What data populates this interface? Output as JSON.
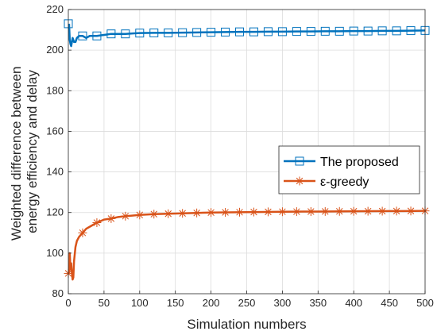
{
  "chart_data": {
    "type": "line",
    "xlabel": "Simulation numbers",
    "ylabel_lines": [
      "Weighted difference between",
      "energy efficiency and delay"
    ],
    "xlim": [
      0,
      500
    ],
    "ylim": [
      80,
      220
    ],
    "xticks": [
      0,
      50,
      100,
      150,
      200,
      250,
      300,
      350,
      400,
      450,
      500
    ],
    "yticks": [
      80,
      100,
      120,
      140,
      160,
      180,
      200,
      220
    ],
    "grid": true,
    "legend_position": "right",
    "series": [
      {
        "name": "The proposed",
        "color": "#0072BD",
        "marker": "square",
        "x": [
          1,
          2,
          3,
          4,
          5,
          6,
          7,
          8,
          9,
          10,
          12,
          15,
          20,
          25,
          30,
          35,
          40,
          50,
          60,
          70,
          80,
          90,
          100,
          120,
          140,
          160,
          180,
          200,
          220,
          240,
          260,
          280,
          300,
          320,
          340,
          360,
          380,
          400,
          420,
          440,
          460,
          480,
          500
        ],
        "y": [
          213,
          205,
          203,
          202,
          204,
          206,
          205,
          204,
          204,
          204,
          206,
          207,
          207,
          206,
          207,
          207,
          207,
          207.5,
          208,
          208,
          208,
          208.2,
          208.4,
          208.5,
          208.5,
          208.6,
          208.7,
          208.8,
          208.9,
          209,
          209,
          209.1,
          209.1,
          209.2,
          209.2,
          209.3,
          209.3,
          209.4,
          209.4,
          209.5,
          209.5,
          209.6,
          209.7
        ],
        "marker_x": [
          0,
          20,
          40,
          60,
          80,
          100,
          120,
          140,
          160,
          180,
          200,
          220,
          240,
          260,
          280,
          300,
          320,
          340,
          360,
          380,
          400,
          420,
          440,
          460,
          480,
          500
        ]
      },
      {
        "name": "ε-greedy",
        "color": "#D95319",
        "marker": "asterisk",
        "x": [
          1,
          2,
          3,
          4,
          5,
          6,
          7,
          8,
          10,
          12,
          15,
          20,
          25,
          30,
          40,
          50,
          60,
          70,
          80,
          100,
          120,
          140,
          160,
          180,
          200,
          250,
          300,
          350,
          400,
          450,
          500
        ],
        "y": [
          90,
          100,
          92,
          95,
          90,
          87,
          88,
          96,
          103,
          106,
          108,
          110,
          112,
          113,
          115,
          116.5,
          117,
          117.8,
          118.2,
          118.8,
          119.2,
          119.4,
          119.6,
          119.8,
          120,
          120.2,
          120.4,
          120.5,
          120.6,
          120.7,
          120.8
        ],
        "marker_x": [
          0,
          20,
          40,
          60,
          80,
          100,
          120,
          140,
          160,
          180,
          200,
          220,
          240,
          260,
          280,
          300,
          320,
          340,
          360,
          380,
          400,
          420,
          440,
          460,
          480,
          500
        ]
      }
    ]
  }
}
